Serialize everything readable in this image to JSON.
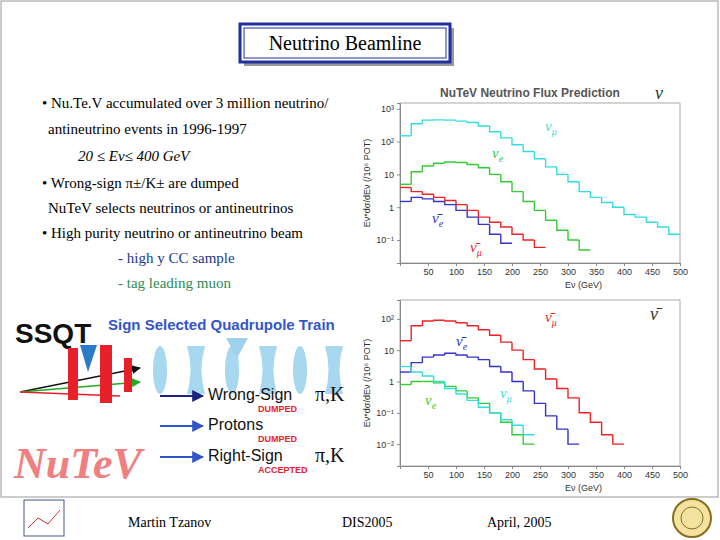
{
  "slide": {
    "title": "Neutrino Beamline",
    "bullets": [
      "• Nu.Te.V accumulated over 3 million neutrino/",
      "antineutrino events in 1996-1997",
      "20 ≤ Eν≤ 400 GeV",
      "• Wrong-sign π±/K± are dumped",
      "NuTeV selects neutrinos or antineutrinos",
      "• High purity neutrino or antineutrino beam",
      "- high y CC sample",
      "- tag leading muon"
    ],
    "diagram": {
      "acronym": "SSQT",
      "name": "Sign Selected Quadrupole Train",
      "outputs": [
        {
          "label": "Wrong-Sign",
          "particles": "π,K",
          "status": "DUMPED"
        },
        {
          "label": "Protons",
          "status": "DUMPED"
        },
        {
          "label": "Right-Sign",
          "particles": "π,K",
          "status": "ACCEPTED"
        }
      ],
      "experiment": "NuTeV"
    },
    "footer": {
      "author": "Martin Tzanov",
      "conference": "DIS2005",
      "date": "April, 2005"
    }
  },
  "chart_data": [
    {
      "type": "histogram",
      "title": "NuTeV Neutrino Flux Prediction",
      "annotations": [
        "ν"
      ],
      "x_label": "Eν (GeV)",
      "y_label": "Eν*dσ/dEν (/10⁶ POT)",
      "log": "y",
      "xlim": [
        0,
        500
      ],
      "ylim": [
        0.02,
        1500
      ],
      "xticks": [
        50,
        100,
        150,
        200,
        250,
        300,
        350,
        400,
        450,
        500
      ],
      "yticks": [
        {
          "value": 0.1,
          "label": "10⁻¹"
        },
        1,
        10,
        {
          "value": 100,
          "label": "10²"
        },
        {
          "value": 1000,
          "label": "10³"
        }
      ],
      "bins": [
        0,
        20,
        40,
        60,
        80,
        100,
        120,
        140,
        160,
        180,
        200,
        220,
        240,
        260,
        280,
        300,
        320,
        340,
        360,
        380,
        400,
        420,
        440,
        460,
        480,
        500
      ],
      "series": [
        {
          "name": "νμ",
          "color": "#33dddd",
          "values": [
            150,
            350,
            450,
            460,
            450,
            420,
            380,
            300,
            200,
            130,
            80,
            50,
            30,
            17,
            10,
            6,
            3,
            2,
            1.4,
            1,
            0.6,
            0.5,
            0.35,
            0.25,
            0.15
          ]
        },
        {
          "name": "νe",
          "color": "#33cc33",
          "values": [
            5,
            12,
            18,
            22,
            24,
            23,
            20,
            16,
            10,
            6,
            3,
            1.5,
            0.8,
            0.4,
            0.2,
            0.1,
            0.05,
            null,
            null,
            null,
            null,
            null,
            null,
            null,
            null
          ]
        },
        {
          "name": "ν̄e",
          "color": "#3333cc",
          "values": [
            1.5,
            2,
            1.8,
            1.5,
            1.2,
            0.8,
            0.5,
            0.3,
            0.15,
            0.08,
            null,
            null,
            null,
            null,
            null,
            null,
            null,
            null,
            null,
            null,
            null,
            null,
            null,
            null,
            null
          ]
        },
        {
          "name": "ν̄μ",
          "color": "#ee2222",
          "values": [
            4,
            3,
            2.5,
            2,
            1.6,
            1.2,
            0.8,
            0.5,
            0.35,
            0.25,
            0.15,
            0.1,
            0.06,
            null,
            null,
            null,
            null,
            null,
            null,
            null,
            null,
            null,
            null,
            null,
            null
          ]
        }
      ]
    },
    {
      "type": "histogram",
      "annotations": [
        "ν̄"
      ],
      "x_label": "Eν (GeV)",
      "y_label": "Eν*dσ/dEν (/10⁶ POT)",
      "log": "y",
      "xlim": [
        0,
        500
      ],
      "ylim": [
        0.002,
        400
      ],
      "xticks": [
        50,
        100,
        150,
        200,
        250,
        300,
        350,
        400,
        450,
        500
      ],
      "yticks": [
        {
          "value": 0.01,
          "label": "10⁻²"
        },
        {
          "value": 0.1,
          "label": "10⁻¹"
        },
        1,
        10,
        {
          "value": 100,
          "label": "10²"
        }
      ],
      "bins": [
        0,
        20,
        40,
        60,
        80,
        100,
        120,
        140,
        160,
        180,
        200,
        220,
        240,
        260,
        280,
        300,
        320,
        340,
        360,
        380,
        400,
        420,
        440,
        460,
        480,
        500
      ],
      "series": [
        {
          "name": "ν̄μ",
          "color": "#ee2222",
          "values": [
            20,
            60,
            85,
            90,
            85,
            75,
            60,
            45,
            30,
            18,
            10,
            5,
            2.5,
            1.2,
            0.6,
            0.3,
            0.1,
            0.05,
            0.02,
            0.01,
            null,
            null,
            null,
            null,
            null
          ]
        },
        {
          "name": "ν̄e",
          "color": "#3333cc",
          "values": [
            2,
            4,
            6,
            7,
            8,
            7,
            6,
            5,
            3,
            2,
            1,
            0.5,
            0.2,
            0.08,
            0.03,
            0.01,
            null,
            null,
            null,
            null,
            null,
            null,
            null,
            null,
            null
          ]
        },
        {
          "name": "νe",
          "color": "#33cc33",
          "values": [
            0.8,
            1,
            1,
            0.9,
            0.7,
            0.5,
            0.3,
            0.2,
            0.1,
            0.05,
            0.02,
            0.01,
            null,
            null,
            null,
            null,
            null,
            null,
            null,
            null,
            null,
            null,
            null,
            null,
            null
          ]
        },
        {
          "name": "νμ",
          "color": "#33dddd",
          "values": [
            3,
            2,
            1.5,
            1,
            0.6,
            0.4,
            0.25,
            0.15,
            0.1,
            0.06,
            0.04,
            0.02,
            null,
            null,
            null,
            null,
            null,
            null,
            null,
            null,
            null,
            null,
            null,
            null,
            null
          ]
        }
      ]
    }
  ]
}
